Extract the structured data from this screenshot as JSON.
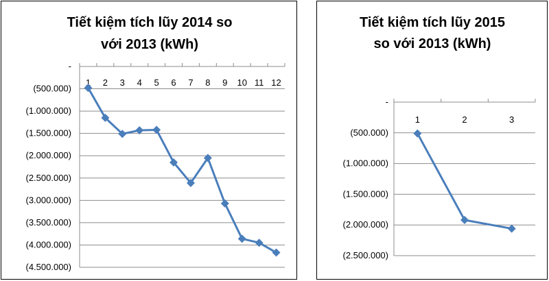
{
  "colors": {
    "series": "#4a7ebb",
    "marker": "#4a7ebb",
    "grid": "#8c8c8c"
  },
  "chart_data": [
    {
      "type": "line",
      "title_lines": [
        "Tiết kiệm tích lũy 2014 so",
        "với 2013 (kWh)"
      ],
      "categories": [
        "1",
        "2",
        "3",
        "4",
        "5",
        "6",
        "7",
        "8",
        "9",
        "10",
        "11",
        "12"
      ],
      "values": [
        -480000,
        -1150000,
        -1510000,
        -1430000,
        -1420000,
        -2150000,
        -2610000,
        -2050000,
        -3070000,
        -3860000,
        -3950000,
        -4170000
      ],
      "ylim": [
        -4500000,
        0
      ],
      "y_step": 500000,
      "y_tick_labels": [
        "-",
        "(500.000)",
        "(1.000.000)",
        "(1.500.000)",
        "(2.000.000)",
        "(2.500.000)",
        "(3.000.000)",
        "(3.500.000)",
        "(4.000.000)",
        "(4.500.000)"
      ],
      "x_axis_position": "top",
      "grid": true,
      "legend": "none"
    },
    {
      "type": "line",
      "title_lines": [
        "Tiết kiệm tích lũy 2015",
        "so với 2013 (kWh)"
      ],
      "categories": [
        "1",
        "2",
        "3"
      ],
      "values": [
        -510000,
        -1920000,
        -2060000
      ],
      "ylim": [
        -2500000,
        0
      ],
      "y_step": 500000,
      "y_tick_labels": [
        "-",
        "(500.000)",
        "(1.000.000)",
        "(1.500.000)",
        "(2.000.000)",
        "(2.500.000)"
      ],
      "x_axis_position": "top",
      "grid": true,
      "legend": "none"
    }
  ]
}
